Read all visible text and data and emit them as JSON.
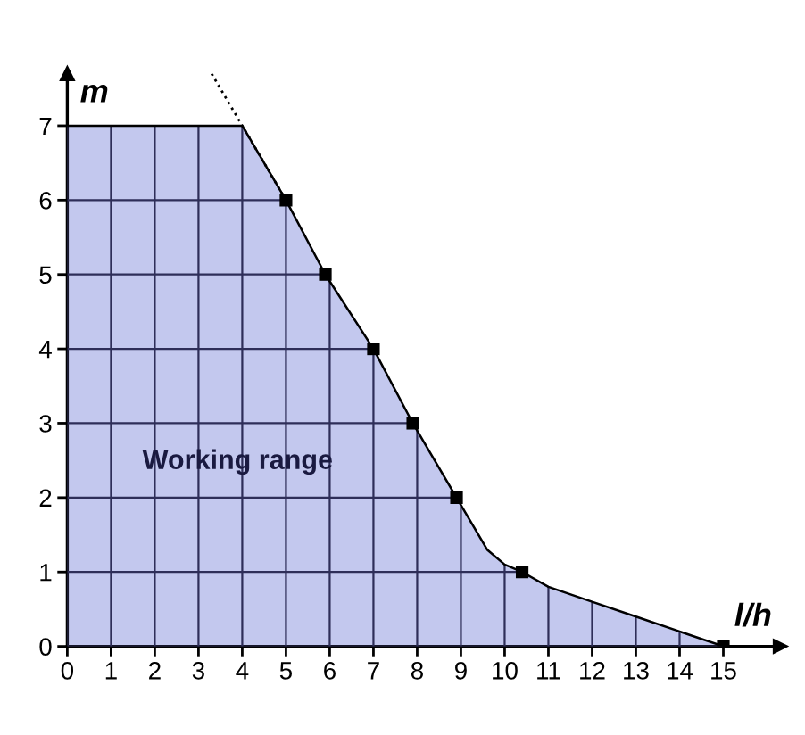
{
  "chart_data": {
    "type": "area",
    "xlabel": "l/h",
    "ylabel": "m",
    "xlim": [
      0,
      16.3
    ],
    "ylim": [
      0,
      7.7
    ],
    "xticks": [
      0,
      1,
      2,
      3,
      4,
      5,
      6,
      7,
      8,
      9,
      10,
      11,
      12,
      13,
      14,
      15
    ],
    "yticks": [
      0,
      1,
      2,
      3,
      4,
      5,
      6,
      7
    ],
    "grid": true,
    "annotations": [
      "Working range"
    ],
    "series": [
      {
        "color": "#c3c8ee",
        "line_style": "solid",
        "x": [
          0,
          4,
          5,
          5.9,
          7,
          7.9,
          8.9,
          9.3,
          9.6,
          10,
          10.4,
          11,
          12,
          13,
          14,
          15
        ],
        "values": [
          7,
          7,
          6,
          5,
          4,
          3,
          2,
          1.6,
          1.3,
          1.1,
          1,
          0.8,
          0.6,
          0.4,
          0.2,
          0
        ]
      },
      {
        "type": "line",
        "color": "#000000",
        "line_style": "dotted",
        "x": [
          3.3,
          5
        ],
        "values": [
          7.7,
          6
        ]
      },
      {
        "type": "scatter",
        "color": "#000000",
        "marker": "square",
        "x": [
          5,
          5.9,
          7,
          7.9,
          8.9,
          10.4,
          15
        ],
        "values": [
          6,
          5,
          4,
          3,
          2,
          1,
          0
        ]
      }
    ]
  }
}
